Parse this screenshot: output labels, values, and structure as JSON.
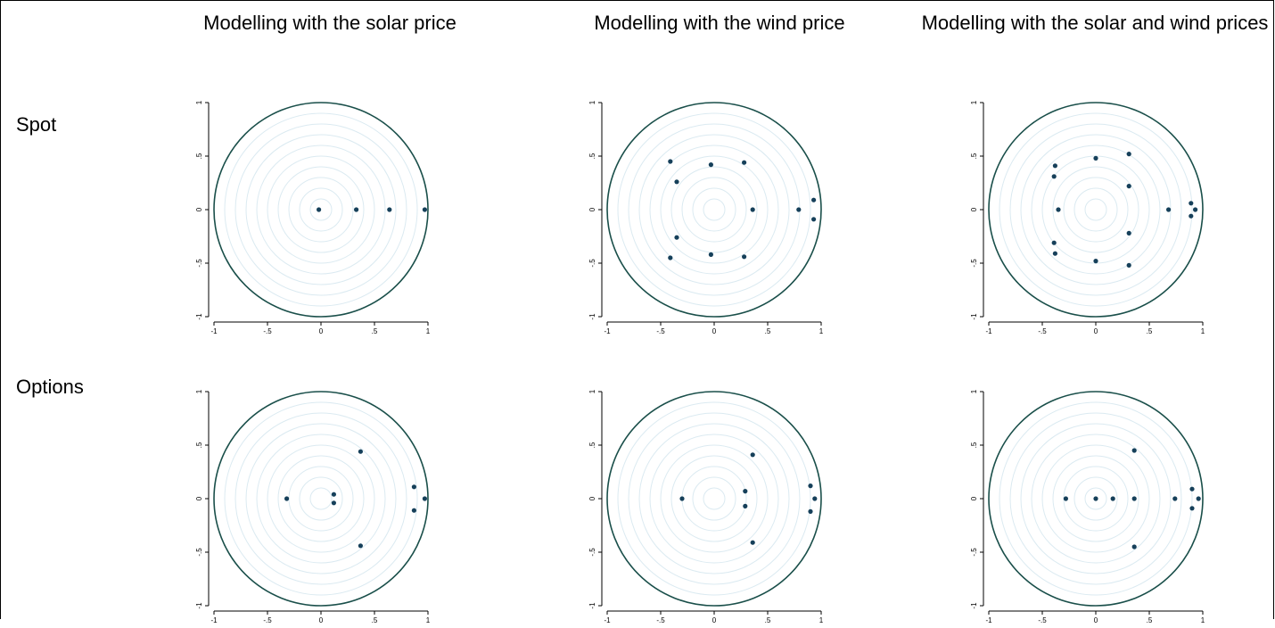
{
  "columns": [
    {
      "title": "Modelling with the solar price"
    },
    {
      "title": "Modelling with the wind price"
    },
    {
      "title": "Modelling with the solar and wind prices"
    }
  ],
  "rows": [
    {
      "label": "Spot"
    },
    {
      "label": "Options"
    }
  ],
  "chart_data": [
    {
      "type": "scatter",
      "row": "Spot",
      "column": "Modelling with the solar price",
      "title": "",
      "xlim": [
        -1,
        1
      ],
      "ylim": [
        -1,
        1
      ],
      "xticks": [
        "-1",
        "-.5",
        "0",
        ".5",
        "1"
      ],
      "yticks": [
        "-1",
        "-.5",
        "0",
        ".5",
        "1"
      ],
      "points": [
        [
          -0.02,
          0
        ],
        [
          0.33,
          0
        ],
        [
          0.64,
          0
        ],
        [
          0.97,
          0
        ]
      ]
    },
    {
      "type": "scatter",
      "row": "Spot",
      "column": "Modelling with the wind price",
      "title": "",
      "xlim": [
        -1,
        1
      ],
      "ylim": [
        -1,
        1
      ],
      "xticks": [
        "-1",
        "-.5",
        "0",
        ".5",
        "1"
      ],
      "yticks": [
        "-1",
        "-.5",
        "0",
        ".5",
        "1"
      ],
      "points": [
        [
          -0.41,
          0.45
        ],
        [
          -0.03,
          0.42
        ],
        [
          0.28,
          0.44
        ],
        [
          -0.35,
          0.26
        ],
        [
          0.36,
          0
        ],
        [
          0.79,
          0
        ],
        [
          0.93,
          0.09
        ],
        [
          0.93,
          -0.09
        ],
        [
          -0.35,
          -0.26
        ],
        [
          -0.41,
          -0.45
        ],
        [
          -0.03,
          -0.42
        ],
        [
          0.28,
          -0.44
        ]
      ]
    },
    {
      "type": "scatter",
      "row": "Spot",
      "column": "Modelling with the solar and wind prices",
      "title": "",
      "xlim": [
        -1,
        1
      ],
      "ylim": [
        -1,
        1
      ],
      "xticks": [
        "-1",
        "-.5",
        "0",
        ".5",
        "1"
      ],
      "yticks": [
        "-1",
        "-.5",
        "0",
        ".5",
        "1"
      ],
      "points": [
        [
          -0.38,
          0.41
        ],
        [
          -0.39,
          0.31
        ],
        [
          0.0,
          0.48
        ],
        [
          0.31,
          0.52
        ],
        [
          0.31,
          0.22
        ],
        [
          -0.35,
          0
        ],
        [
          0.68,
          0
        ],
        [
          0.89,
          0.06
        ],
        [
          0.93,
          0
        ],
        [
          0.89,
          -0.06
        ],
        [
          0.31,
          -0.22
        ],
        [
          0.31,
          -0.52
        ],
        [
          0.0,
          -0.48
        ],
        [
          -0.39,
          -0.31
        ],
        [
          -0.38,
          -0.41
        ]
      ]
    },
    {
      "type": "scatter",
      "row": "Options",
      "column": "Modelling with the solar price",
      "title": "",
      "xlim": [
        -1,
        1
      ],
      "ylim": [
        -1,
        1
      ],
      "xticks": [
        "-1",
        "-.5",
        "0",
        ".5",
        "1"
      ],
      "yticks": [
        "-1",
        "-.5",
        "0",
        ".5",
        "1"
      ],
      "points": [
        [
          -0.32,
          0
        ],
        [
          0.12,
          0.04
        ],
        [
          0.12,
          -0.04
        ],
        [
          0.37,
          0.44
        ],
        [
          0.37,
          -0.44
        ],
        [
          0.87,
          0.11
        ],
        [
          0.97,
          0
        ],
        [
          0.87,
          -0.11
        ]
      ]
    },
    {
      "type": "scatter",
      "row": "Options",
      "column": "Modelling with the wind price",
      "title": "",
      "xlim": [
        -1,
        1
      ],
      "ylim": [
        -1,
        1
      ],
      "xticks": [
        "-1",
        "-.5",
        "0",
        ".5",
        "1"
      ],
      "yticks": [
        "-1",
        "-.5",
        "0",
        ".5",
        "1"
      ],
      "points": [
        [
          -0.3,
          0
        ],
        [
          0.29,
          0.07
        ],
        [
          0.29,
          -0.07
        ],
        [
          0.36,
          0.41
        ],
        [
          0.36,
          -0.41
        ],
        [
          0.9,
          0.12
        ],
        [
          0.94,
          0
        ],
        [
          0.9,
          -0.12
        ]
      ]
    },
    {
      "type": "scatter",
      "row": "Options",
      "column": "Modelling with the solar and wind prices",
      "title": "",
      "xlim": [
        -1,
        1
      ],
      "ylim": [
        -1,
        1
      ],
      "xticks": [
        "-1",
        "-.5",
        "0",
        ".5",
        "1"
      ],
      "yticks": [
        "-1",
        "-.5",
        "0",
        ".5",
        "1"
      ],
      "points": [
        [
          -0.28,
          0
        ],
        [
          0.0,
          0
        ],
        [
          0.16,
          0
        ],
        [
          0.36,
          0
        ],
        [
          0.36,
          0.45
        ],
        [
          0.36,
          -0.45
        ],
        [
          0.74,
          0
        ],
        [
          0.9,
          0.09
        ],
        [
          0.96,
          0
        ],
        [
          0.9,
          -0.09
        ]
      ]
    }
  ]
}
